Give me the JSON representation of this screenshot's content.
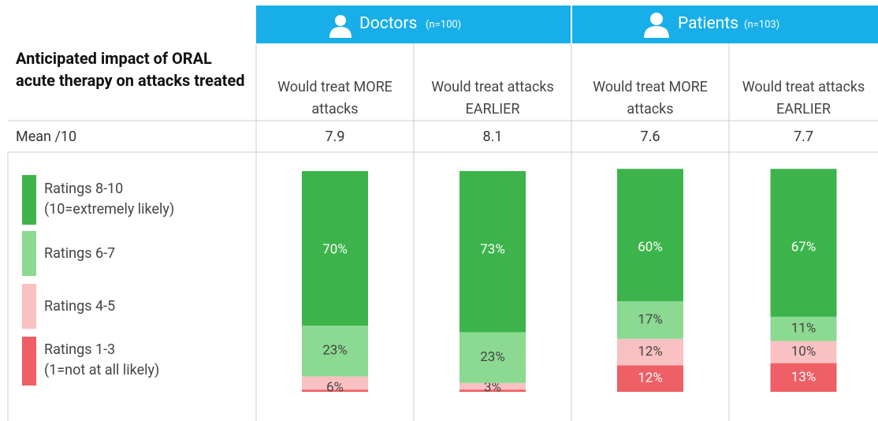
{
  "groups": [
    {
      "name": "Doctors",
      "n": "(n=100)"
    },
    {
      "name": "Patients",
      "n": "(n=103)"
    }
  ],
  "row_header": "Anticipated impact of ORAL acute therapy on attacks treated",
  "mean_label": "Mean /10",
  "chart_data": {
    "type": "bar",
    "stacked": true,
    "categories": [
      "Would treat MORE attacks",
      "Would treat attacks EARLIER",
      "Would treat MORE attacks",
      "Would treat attacks EARLIER"
    ],
    "means": [
      7.9,
      8.1,
      7.6,
      7.7
    ],
    "ylim": [
      0,
      100
    ],
    "series": [
      {
        "name": "Ratings 8-10",
        "note": "(10=extremely likely)",
        "color": "#3cb44b",
        "values": [
          70,
          73,
          60,
          67
        ],
        "value_labels": [
          "70%",
          "73%",
          "60%",
          "67%"
        ]
      },
      {
        "name": "Ratings 6-7",
        "color": "#8cd991",
        "values": [
          23,
          23,
          17,
          11
        ],
        "value_labels": [
          "23%",
          "23%",
          "17%",
          "11%"
        ]
      },
      {
        "name": "Ratings 4-5",
        "color": "#f9c1c1",
        "values": [
          6,
          3,
          12,
          10
        ],
        "value_labels": [
          "6%",
          "3%",
          "12%",
          "10%"
        ]
      },
      {
        "name": "Ratings 1-3",
        "note": "(1=not at all likely)",
        "color": "#ee5f66",
        "values": [
          1,
          1,
          12,
          13
        ],
        "value_labels": [
          null,
          null,
          "12%",
          "13%"
        ]
      }
    ]
  }
}
